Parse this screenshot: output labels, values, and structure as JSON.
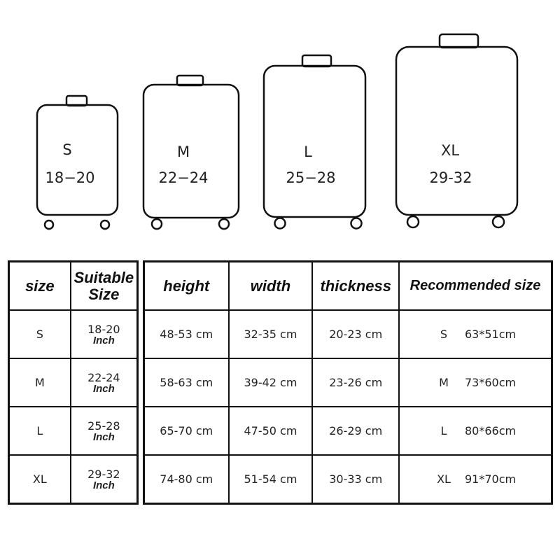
{
  "suitcases": [
    {
      "size": "S",
      "range": "18−20"
    },
    {
      "size": "M",
      "range": "22−24"
    },
    {
      "size": "L",
      "range": "25−28"
    },
    {
      "size": "XL",
      "range": "29-32"
    }
  ],
  "size_table": {
    "headers": [
      "size",
      "Suitable Size"
    ],
    "unit": "Inch",
    "rows": [
      {
        "size": "S",
        "suitable": "18-20"
      },
      {
        "size": "M",
        "suitable": "22-24"
      },
      {
        "size": "L",
        "suitable": "25-28"
      },
      {
        "size": "XL",
        "suitable": "29-32"
      }
    ]
  },
  "dimension_table": {
    "headers": [
      "height",
      "width",
      "thickness",
      "Recommended size"
    ],
    "rows": [
      {
        "height": "48-53 cm",
        "width": "32-35 cm",
        "thickness": "20-23 cm",
        "rec_size": "S",
        "rec_value": "63*51cm"
      },
      {
        "height": "58-63 cm",
        "width": "39-42 cm",
        "thickness": "23-26 cm",
        "rec_size": "M",
        "rec_value": "73*60cm"
      },
      {
        "height": "65-70 cm",
        "width": "47-50 cm",
        "thickness": "26-29 cm",
        "rec_size": "L",
        "rec_value": "80*66cm"
      },
      {
        "height": "74-80 cm",
        "width": "51-54 cm",
        "thickness": "30-33 cm",
        "rec_size": "XL",
        "rec_value": "91*70cm"
      }
    ]
  }
}
